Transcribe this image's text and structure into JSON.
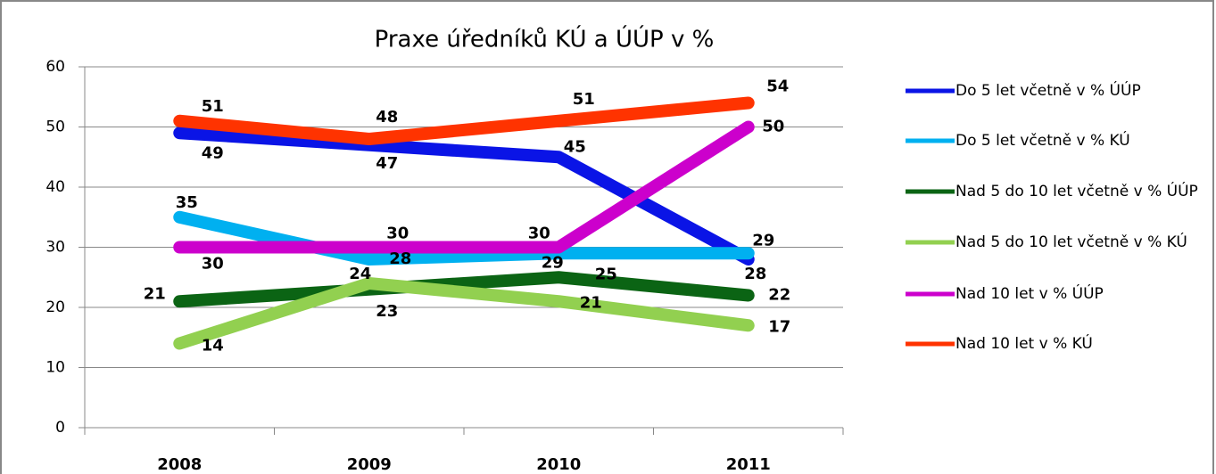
{
  "chart_data": {
    "type": "line",
    "title": "Praxe úředníků KÚ a ÚÚP v %",
    "categories": [
      "2008",
      "2009",
      "2010",
      "2011"
    ],
    "series": [
      {
        "name": "Do 5 let včetně v % ÚÚP",
        "color": "#0a14e6",
        "values": [
          49,
          47,
          45,
          28
        ]
      },
      {
        "name": "Do 5 let včetně v % KÚ",
        "color": "#00b0f0",
        "values": [
          35,
          28,
          29,
          29
        ]
      },
      {
        "name": "Nad 5 do 10 let včetně v % ÚÚP",
        "color": "#0b6414",
        "values": [
          21,
          23,
          25,
          22
        ]
      },
      {
        "name": "Nad 5 do 10 let včetně v % KÚ",
        "color": "#92d050",
        "values": [
          14,
          24,
          21,
          17
        ]
      },
      {
        "name": "Nad 10 let v % ÚÚP",
        "color": "#cc00cc",
        "values": [
          30,
          30,
          30,
          50
        ]
      },
      {
        "name": "Nad 10 let v % KÚ",
        "color": "#ff3300",
        "values": [
          51,
          48,
          51,
          54
        ]
      }
    ],
    "ylim": [
      0,
      60
    ],
    "yticks": [
      0,
      10,
      20,
      30,
      40,
      50,
      60
    ],
    "grid": true,
    "legend": "right"
  }
}
